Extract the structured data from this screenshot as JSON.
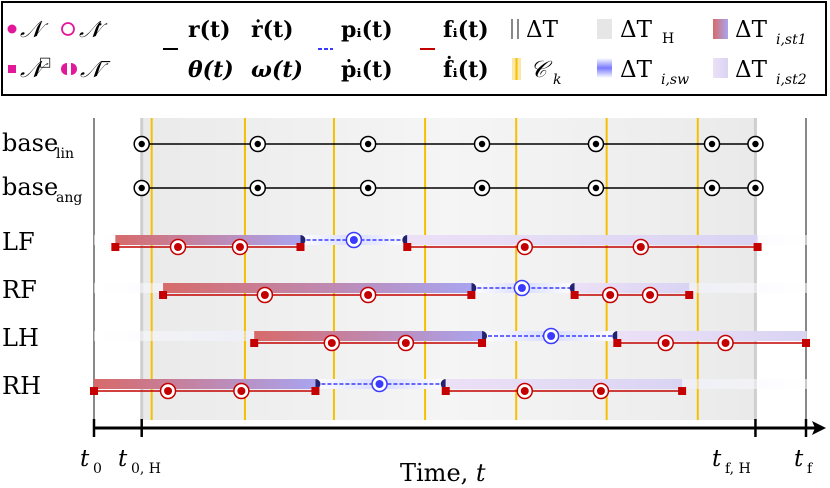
{
  "legend": {
    "node": "𝒩",
    "node_dot": "𝒩̇",
    "node_box": "𝒩",
    "node_box_sup": "□",
    "node_minus": "𝒩",
    "node_minus_sup": "−",
    "r": "r(t)",
    "r_dot": "ṙ(t)",
    "theta": "θ(t)",
    "omega": "ω(t)",
    "p": "pᵢ(t)",
    "p_dot": "ṗᵢ(t)",
    "f": "fᵢ(t)",
    "f_dot": "ḟᵢ(t)",
    "delta_t": "ΔT",
    "c_k": "𝒞",
    "c_k_sub": "k",
    "delta_t_h": "ΔT",
    "delta_t_h_sub": "H",
    "delta_t_sw": "ΔT",
    "delta_t_sw_sub": "i,sw",
    "delta_t_st1": "ΔT",
    "delta_t_st1_sub": "i,st1",
    "delta_t_st2": "ΔT",
    "delta_t_st2_sub": "i,st2"
  },
  "colors": {
    "node_magenta": "#e2189b",
    "stance_red": "#c40000",
    "swing_blue": "#3b3bff",
    "contact_yellow": "#f5c000",
    "horizon_gray": "#f0f0f0",
    "grid_gray": "#888888"
  },
  "rows": {
    "base_lin": "base",
    "base_lin_sub": "lin",
    "base_ang": "base",
    "base_ang_sub": "ang",
    "lf": "LF",
    "rf": "RF",
    "lh": "LH",
    "rh": "RH"
  },
  "axis": {
    "t0": "t",
    "t0_sub": "0",
    "t0h": "t",
    "t0h_sub": "0, H",
    "tfh": "t",
    "tfh_sub": "f, H",
    "tf": "t",
    "tf_sub": "f",
    "label": "Time, ",
    "label_var": "t"
  },
  "timeline": {
    "t_start": 0,
    "t_end": 1,
    "horizon": [
      0.067,
      0.929
    ],
    "contact_switches": [
      0.081,
      0.212,
      0.337,
      0.465,
      0.593,
      0.72,
      0.848
    ],
    "base_nodes": [
      0.067,
      0.23,
      0.385,
      0.545,
      0.705,
      0.868,
      0.929
    ],
    "legs": [
      {
        "row": "lf",
        "stance": [
          [
            0.03,
            0.29,
            [
              0.118,
              0.205
            ]
          ],
          [
            0.44,
            0.932,
            [
              0.605,
              0.768
            ]
          ]
        ],
        "swing": [
          [
            0.29,
            0.44,
            [
              0.365
            ]
          ]
        ]
      },
      {
        "row": "rf",
        "stance": [
          [
            0.097,
            0.53,
            [
              0.24,
              0.385
            ]
          ],
          [
            0.675,
            0.836,
            [
              0.725,
              0.781
            ]
          ]
        ],
        "swing": [
          [
            0.53,
            0.675,
            [
              0.601
            ]
          ]
        ]
      },
      {
        "row": "lh",
        "stance": [
          [
            0.225,
            0.545,
            [
              0.334,
              0.438
            ]
          ],
          [
            0.735,
            1.0,
            [
              0.803,
              0.887
            ]
          ]
        ],
        "swing": [
          [
            0.545,
            0.735,
            [
              0.642
            ]
          ]
        ]
      },
      {
        "row": "rh",
        "stance": [
          [
            0.0,
            0.311,
            [
              0.104,
              0.207
            ]
          ],
          [
            0.494,
            0.826,
            [
              0.605,
              0.712
            ]
          ]
        ],
        "swing": [
          [
            0.311,
            0.494,
            [
              0.401
            ]
          ]
        ]
      }
    ]
  }
}
